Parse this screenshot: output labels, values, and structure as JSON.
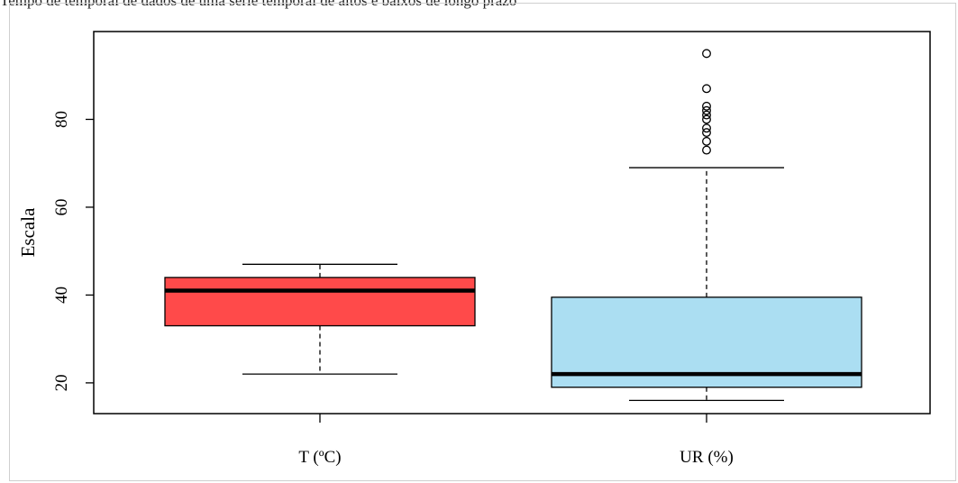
{
  "caption_text": "Tempo de temporal de dados de uma série temporal de altos e baixos de longo prazo",
  "chart_data": {
    "type": "boxplot",
    "title": "",
    "xlabel": "",
    "ylabel": "Escala",
    "ylim": [
      13,
      100
    ],
    "yticks": [
      20,
      40,
      60,
      80
    ],
    "grid": false,
    "categories": [
      "T (ºC)",
      "UR (%)"
    ],
    "boxes": [
      {
        "label": "T (ºC)",
        "color": "#ff4a4a",
        "whisker_low": 22,
        "q1": 33,
        "median": 41,
        "q3": 44,
        "whisker_high": 47,
        "outliers": []
      },
      {
        "label": "UR (%)",
        "color": "#abdef2",
        "whisker_low": 16,
        "q1": 19,
        "median": 22,
        "q3": 39.5,
        "whisker_high": 69,
        "outliers": [
          73,
          75,
          77,
          78,
          80,
          81,
          82,
          83,
          87,
          95
        ]
      }
    ]
  }
}
